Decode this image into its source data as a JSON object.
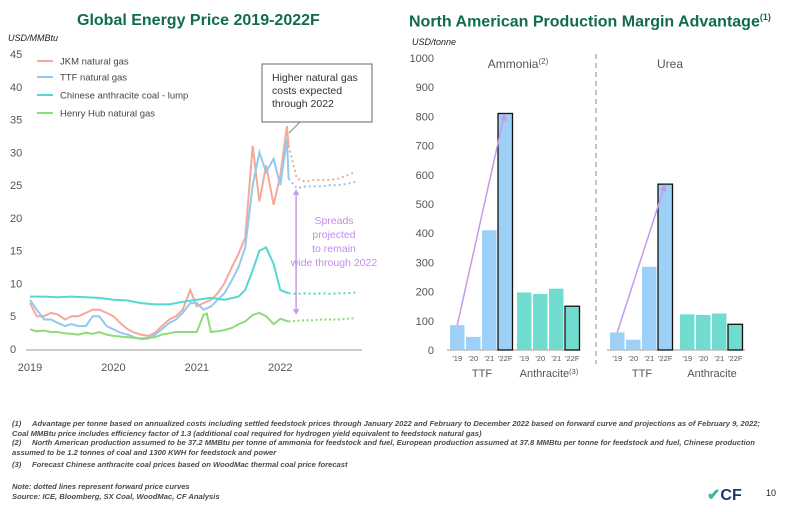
{
  "left_title": "Global Energy Price 2019-2022F",
  "left_unit": "USD/MMBtu",
  "right_title": "North American Production Margin Advantage",
  "right_title_sup": "(1)",
  "right_unit": "USD/tonne",
  "colors": {
    "jkm": "#f4a99a",
    "ttf": "#92c9ef",
    "anthracite": "#55d8d0",
    "henry": "#8cdc7a",
    "arrow": "#c79ae8",
    "bar_ttf": "#9dd0f7",
    "bar_anth": "#6fdccf",
    "title": "#0f6b52"
  },
  "footnotes": [
    {
      "num": "(1)",
      "text": "Advantage per tonne based on annualized costs including settled feedstock prices through January 2022 and February to December 2022 based on forward curve and projections as of February 9, 2022; Coal MMBtu price includes efficiency factor of 1.3 (additional coal required for hydrogen yield equivalent to feedstock natural gas)"
    },
    {
      "num": "(2)",
      "text": "North American production assumed to be 37.2 MMBtu per tonne of ammonia for feedstock and fuel, European production assumed at 37.8 MMBtu per tonne for feedstock and fuel, Chinese production assumed to be 1.2 tonnes of coal and 1300 KWH for feedstock and power"
    },
    {
      "num": "(3)",
      "text": "Forecast Chinese anthracite coal prices based on WoodMac thermal coal price forecast"
    }
  ],
  "note": "Note: dotted lines represent forward price curves",
  "source": "Source: ICE, Bloomberg, SX Coal, WoodMac, CF Analysis",
  "logo": "CF",
  "page_number": "10",
  "chart_data": [
    {
      "type": "line",
      "title": "Global Energy Price 2019-2022F",
      "ylabel": "USD/MMBtu",
      "ylim": [
        0,
        45
      ],
      "yticks": [
        0,
        5,
        10,
        15,
        20,
        25,
        30,
        35,
        40,
        45
      ],
      "xlim": [
        2019,
        2022.98
      ],
      "xticks": [
        {
          "value": 2019,
          "label": "2019"
        },
        {
          "value": 2020,
          "label": "2020"
        },
        {
          "value": 2021,
          "label": "2021"
        },
        {
          "value": 2022,
          "label": "2022"
        }
      ],
      "forecast_start": 2022.1,
      "series": [
        {
          "name": "JKM natural gas",
          "color": "#f4a99a",
          "x": [
            2019.0,
            2019.08,
            2019.17,
            2019.25,
            2019.33,
            2019.42,
            2019.5,
            2019.58,
            2019.67,
            2019.75,
            2019.83,
            2019.92,
            2020.0,
            2020.08,
            2020.17,
            2020.25,
            2020.33,
            2020.42,
            2020.5,
            2020.58,
            2020.67,
            2020.75,
            2020.83,
            2020.92,
            2021.0,
            2021.08,
            2021.17,
            2021.25,
            2021.33,
            2021.42,
            2021.5,
            2021.58,
            2021.67,
            2021.75,
            2021.83,
            2021.92,
            2022.0,
            2022.08,
            2022.1,
            2022.2,
            2022.3,
            2022.4,
            2022.5,
            2022.6,
            2022.7,
            2022.8,
            2022.9
          ],
          "y": [
            7.0,
            5.0,
            5.0,
            5.5,
            5.3,
            4.5,
            5.0,
            5.0,
            5.5,
            6.0,
            6.0,
            5.5,
            5.0,
            4.0,
            3.0,
            2.5,
            2.2,
            2.0,
            2.5,
            3.5,
            4.5,
            5.0,
            6.0,
            9.0,
            6.5,
            7.0,
            7.5,
            8.5,
            10.0,
            12.5,
            14.5,
            17.0,
            31.0,
            22.5,
            28.0,
            22.0,
            26.5,
            34.0,
            31.0,
            26.0,
            25.5,
            25.8,
            25.8,
            25.8,
            26.0,
            26.5,
            27.0
          ]
        },
        {
          "name": "TTF natural gas",
          "color": "#92c9ef",
          "x": [
            2019.0,
            2019.08,
            2019.17,
            2019.25,
            2019.33,
            2019.42,
            2019.5,
            2019.58,
            2019.67,
            2019.75,
            2019.83,
            2019.92,
            2020.0,
            2020.08,
            2020.17,
            2020.25,
            2020.33,
            2020.42,
            2020.5,
            2020.58,
            2020.67,
            2020.75,
            2020.83,
            2020.92,
            2021.0,
            2021.08,
            2021.17,
            2021.25,
            2021.33,
            2021.42,
            2021.5,
            2021.58,
            2021.67,
            2021.75,
            2021.83,
            2021.92,
            2022.0,
            2022.08,
            2022.1,
            2022.2,
            2022.3,
            2022.4,
            2022.5,
            2022.6,
            2022.7,
            2022.8,
            2022.9
          ],
          "y": [
            7.5,
            6.0,
            4.5,
            4.5,
            4.0,
            3.5,
            3.8,
            3.5,
            3.5,
            5.0,
            5.0,
            3.5,
            3.0,
            2.5,
            2.2,
            1.8,
            1.5,
            1.6,
            2.2,
            3.0,
            4.0,
            4.5,
            5.5,
            7.0,
            7.0,
            6.0,
            6.5,
            7.5,
            8.5,
            10.5,
            12.5,
            15.5,
            25.0,
            30.0,
            27.0,
            29.0,
            25.0,
            32.0,
            26.0,
            24.5,
            24.8,
            24.8,
            24.8,
            25.0,
            25.0,
            25.2,
            25.5
          ]
        },
        {
          "name": "Chinese anthracite coal - lump",
          "color": "#55d8d0",
          "x": [
            2019.0,
            2019.17,
            2019.33,
            2019.5,
            2019.67,
            2019.83,
            2020.0,
            2020.17,
            2020.33,
            2020.5,
            2020.67,
            2020.83,
            2021.0,
            2021.17,
            2021.33,
            2021.5,
            2021.58,
            2021.67,
            2021.75,
            2021.83,
            2021.92,
            2022.0,
            2022.1,
            2022.2,
            2022.3,
            2022.4,
            2022.5,
            2022.6,
            2022.7,
            2022.8,
            2022.9
          ],
          "y": [
            8.0,
            8.0,
            7.9,
            8.0,
            7.9,
            7.8,
            7.5,
            7.4,
            7.0,
            6.8,
            6.8,
            7.2,
            7.5,
            7.8,
            7.5,
            8.0,
            9.0,
            12.0,
            15.0,
            15.5,
            13.0,
            9.0,
            8.5,
            8.4,
            8.5,
            8.4,
            8.5,
            8.4,
            8.5,
            8.5,
            8.6
          ]
        },
        {
          "name": "Henry Hub natural gas",
          "color": "#8cdc7a",
          "x": [
            2019.0,
            2019.08,
            2019.17,
            2019.25,
            2019.33,
            2019.42,
            2019.5,
            2019.58,
            2019.67,
            2019.75,
            2019.83,
            2019.92,
            2020.0,
            2020.08,
            2020.17,
            2020.25,
            2020.33,
            2020.42,
            2020.5,
            2020.58,
            2020.67,
            2020.75,
            2020.83,
            2020.92,
            2021.0,
            2021.08,
            2021.12,
            2021.17,
            2021.25,
            2021.33,
            2021.42,
            2021.5,
            2021.58,
            2021.67,
            2021.75,
            2021.83,
            2021.92,
            2022.0,
            2022.1,
            2022.2,
            2022.3,
            2022.4,
            2022.5,
            2022.6,
            2022.7,
            2022.8,
            2022.9
          ],
          "y": [
            3.0,
            2.7,
            2.8,
            2.6,
            2.6,
            2.4,
            2.3,
            2.2,
            2.5,
            2.3,
            2.6,
            2.2,
            2.0,
            1.9,
            1.8,
            1.7,
            1.6,
            1.7,
            1.8,
            2.2,
            2.4,
            2.6,
            2.6,
            2.6,
            2.6,
            5.2,
            5.4,
            2.6,
            2.7,
            2.9,
            3.2,
            3.8,
            4.2,
            5.2,
            5.5,
            5.0,
            3.8,
            4.6,
            4.2,
            4.3,
            4.4,
            4.4,
            4.5,
            4.5,
            4.5,
            4.6,
            4.7
          ]
        }
      ],
      "annotations": [
        "Higher natural gas costs expected through 2022",
        "Spreads projected to remain wide through 2022"
      ]
    },
    {
      "type": "bar",
      "title": "North American Production Margin Advantage",
      "ylabel": "USD/tonne",
      "ylim": [
        0,
        1000
      ],
      "yticks": [
        0,
        100,
        200,
        300,
        400,
        500,
        600,
        700,
        800,
        900,
        1000
      ],
      "panels": [
        {
          "name": "Ammonia",
          "sup": "(2)",
          "groups": [
            {
              "label": "TTF",
              "sup": "",
              "categories": [
                "'19",
                "'20",
                "'21",
                "'22F"
              ],
              "values": [
                85,
                45,
                410,
                810
              ]
            },
            {
              "label": "Anthracite",
              "sup": "(3)",
              "categories": [
                "'19",
                "'20",
                "'21",
                "'22F"
              ],
              "values": [
                197,
                192,
                210,
                150
              ]
            }
          ]
        },
        {
          "name": "Urea",
          "sup": "",
          "groups": [
            {
              "label": "TTF",
              "sup": "",
              "categories": [
                "'19",
                "'20",
                "'21",
                "'22F"
              ],
              "values": [
                60,
                35,
                285,
                568
              ]
            },
            {
              "label": "Anthracite",
              "sup": "",
              "categories": [
                "'19",
                "'20",
                "'21",
                "'22F"
              ],
              "values": [
                122,
                120,
                125,
                88
              ]
            }
          ]
        }
      ]
    }
  ]
}
